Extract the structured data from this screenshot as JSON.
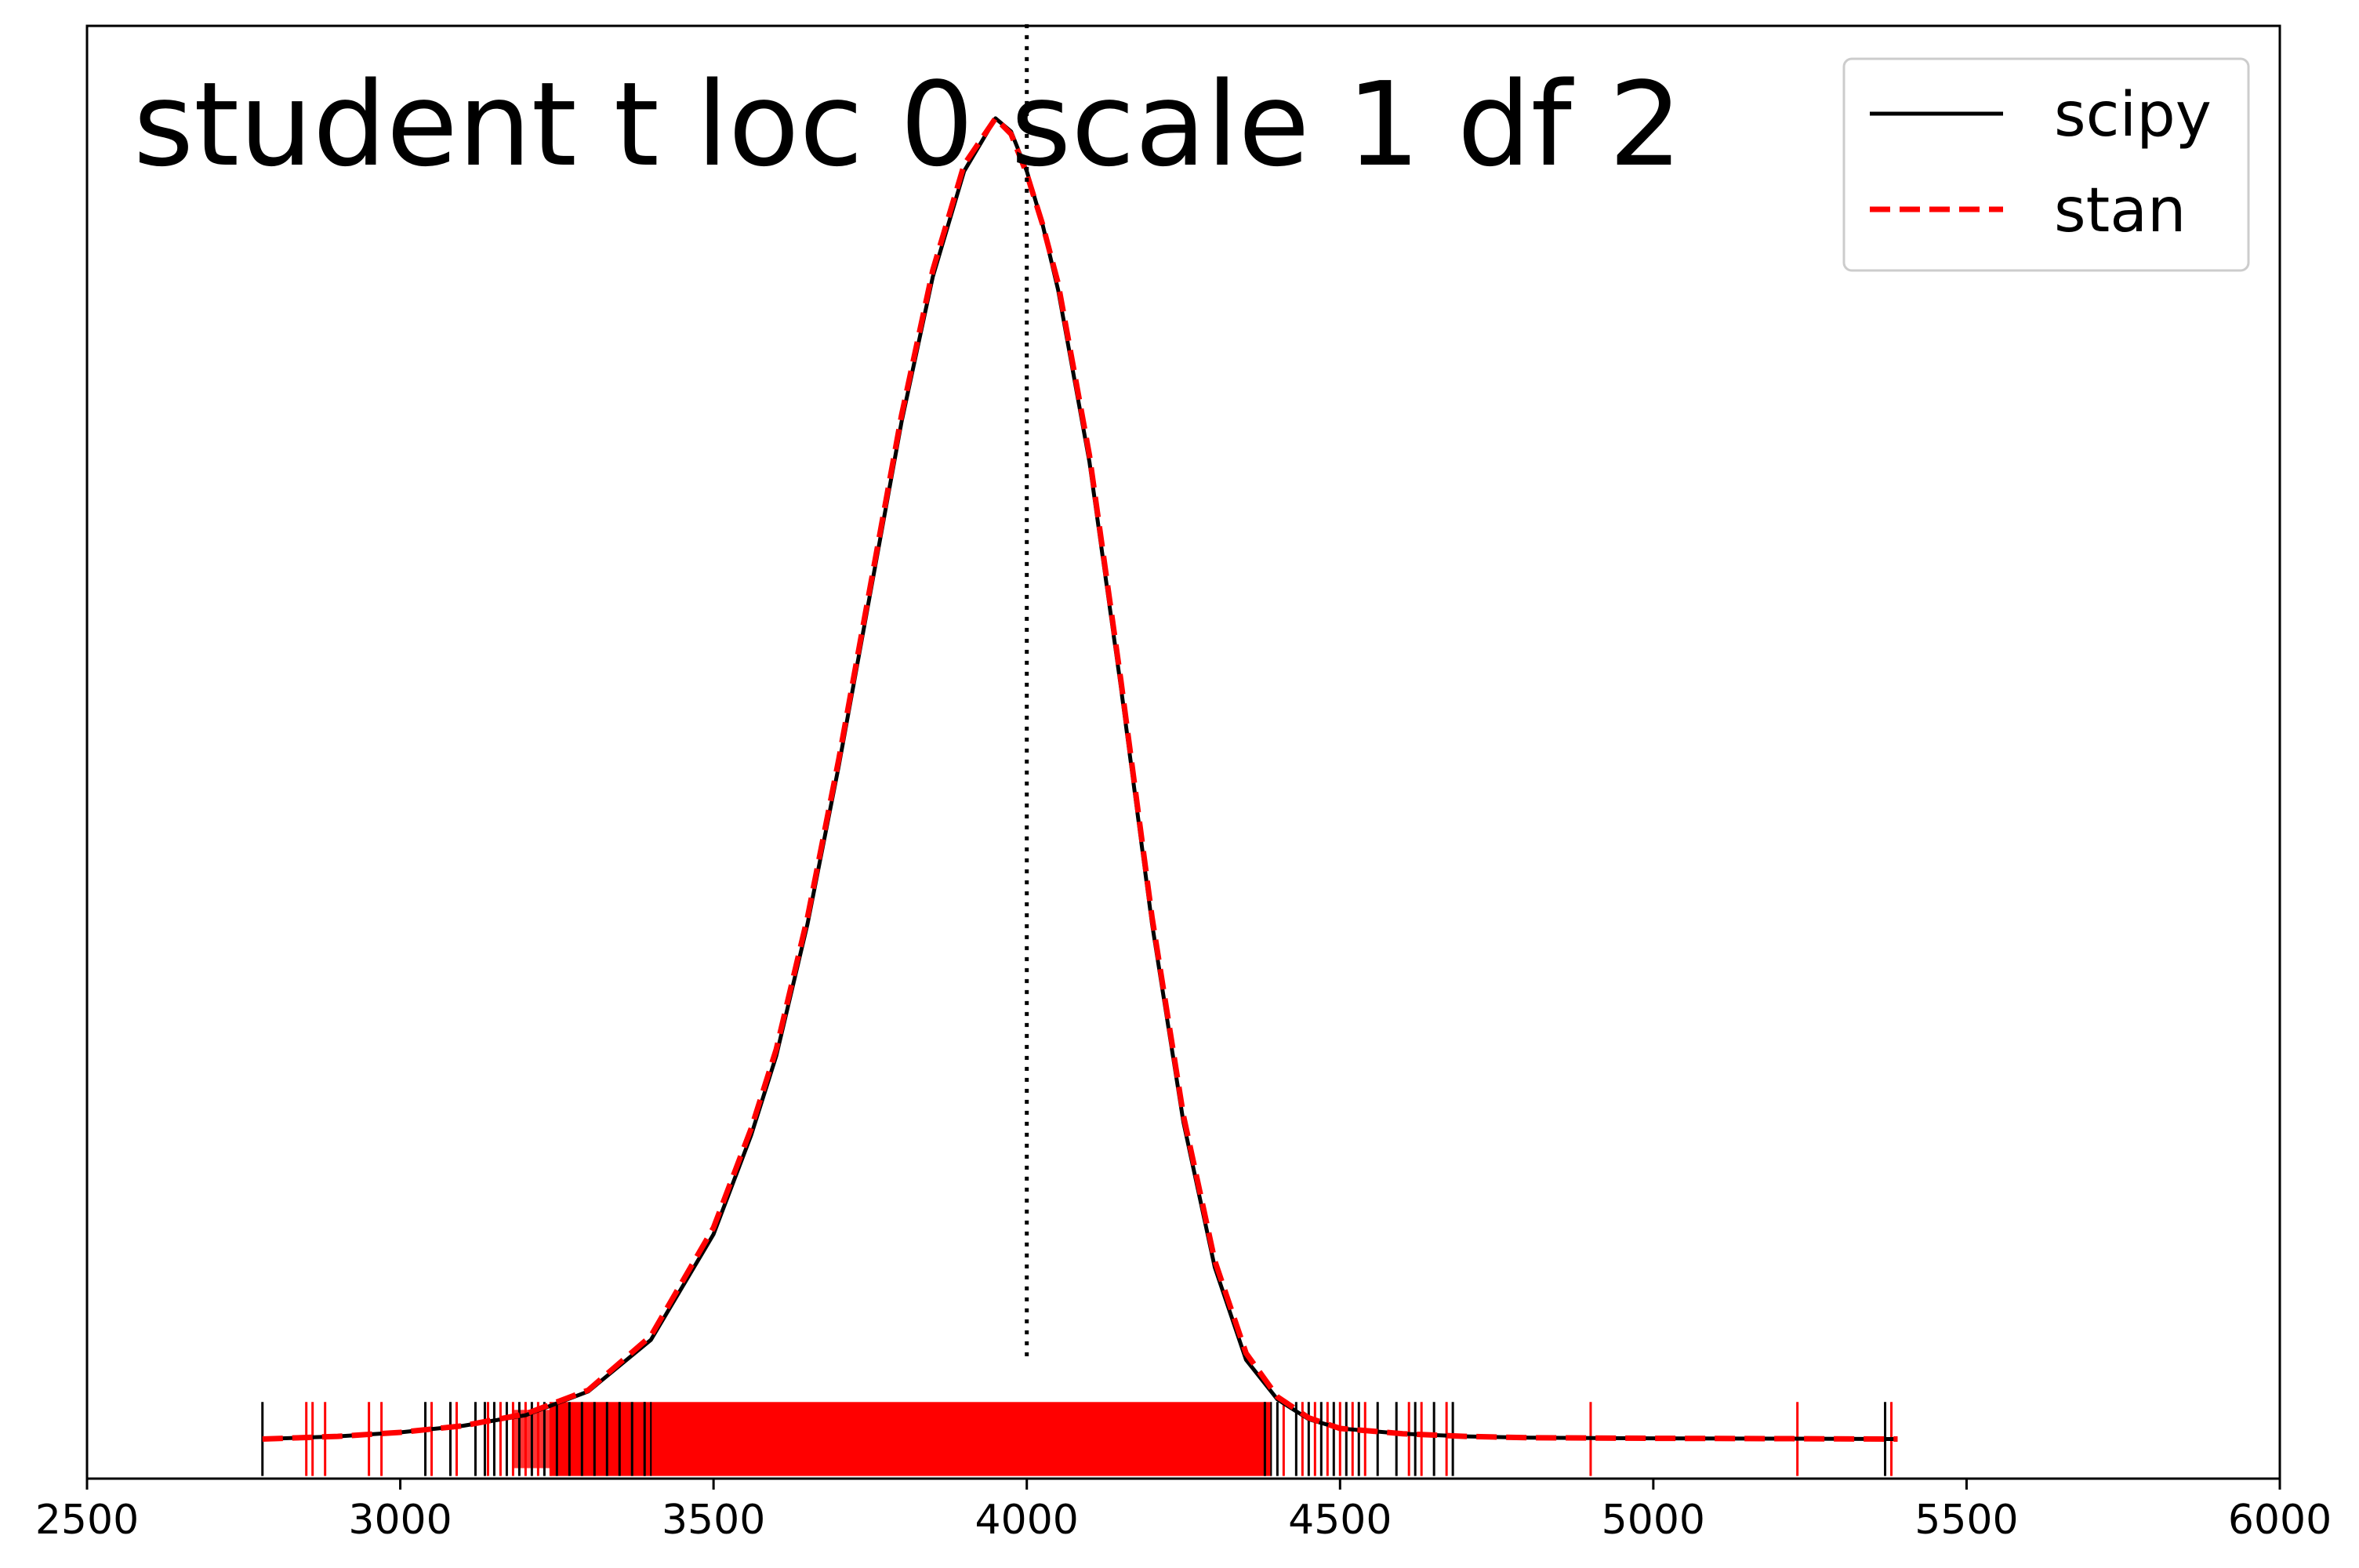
{
  "chart_data": {
    "type": "line",
    "title": "student t loc 0 scale 1 df 2",
    "xlabel": "",
    "ylabel": "",
    "xlim": [
      2500,
      6000
    ],
    "ylim": [
      -0.03,
      1.07
    ],
    "grid": false,
    "legend_position": "top-right",
    "x_ticks": [
      2500,
      3000,
      3500,
      4000,
      4500,
      5000,
      5500,
      6000
    ],
    "x_tick_labels": [
      "2500",
      "3000",
      "3500",
      "4000",
      "4500",
      "5000",
      "5500",
      "6000"
    ],
    "y_ticks": [],
    "reference_line": {
      "x": 4000,
      "y_range": [
        0,
        1.0
      ],
      "style": "dotted",
      "color": "#000000"
    },
    "series": [
      {
        "name": "scipy",
        "color": "#000000",
        "style": "solid",
        "x": [
          2780,
          2900,
          3000,
          3100,
          3200,
          3300,
          3400,
          3500,
          3560,
          3600,
          3650,
          3700,
          3750,
          3800,
          3850,
          3900,
          3950,
          3975,
          4000,
          4025,
          4050,
          4100,
          4150,
          4200,
          4250,
          4300,
          4350,
          4400,
          4450,
          4500,
          4600,
          4700,
          4800,
          5000,
          5200,
          5390
        ],
        "y": [
          0.0,
          0.002,
          0.005,
          0.01,
          0.018,
          0.036,
          0.075,
          0.155,
          0.23,
          0.29,
          0.39,
          0.51,
          0.64,
          0.77,
          0.88,
          0.96,
          1.0,
          0.99,
          0.96,
          0.92,
          0.87,
          0.74,
          0.57,
          0.39,
          0.24,
          0.13,
          0.06,
          0.03,
          0.015,
          0.008,
          0.004,
          0.002,
          0.001,
          0.0005,
          0.0003,
          0.0
        ]
      },
      {
        "name": "stan",
        "color": "#ff0000",
        "style": "dashed",
        "x": [
          2780,
          2900,
          3000,
          3100,
          3200,
          3300,
          3400,
          3500,
          3560,
          3600,
          3650,
          3700,
          3750,
          3800,
          3850,
          3900,
          3950,
          3975,
          4000,
          4025,
          4050,
          4100,
          4150,
          4200,
          4250,
          4300,
          4350,
          4400,
          4450,
          4500,
          4600,
          4700,
          4800,
          5000,
          5200,
          5390
        ],
        "y": [
          0.0,
          0.002,
          0.005,
          0.01,
          0.019,
          0.037,
          0.078,
          0.16,
          0.235,
          0.295,
          0.395,
          0.515,
          0.645,
          0.775,
          0.885,
          0.965,
          1.0,
          0.988,
          0.958,
          0.92,
          0.875,
          0.745,
          0.575,
          0.395,
          0.245,
          0.135,
          0.065,
          0.032,
          0.016,
          0.008,
          0.004,
          0.002,
          0.001,
          0.0005,
          0.0003,
          0.0
        ]
      }
    ],
    "rug": {
      "y": 0,
      "height": 0.028,
      "scipy_ticks": [
        2780,
        3040,
        3080,
        3120,
        3135,
        3150,
        3170,
        3190,
        3210,
        3230,
        3250,
        3270,
        3290,
        3310,
        3330,
        3350,
        3370,
        3390,
        4380,
        4400,
        4430,
        4450,
        4470,
        4490,
        4510,
        4530,
        4560,
        4590,
        4620,
        4650,
        4680,
        5370
      ],
      "stan_ticks": [
        2850,
        2860,
        2880,
        2950,
        2970,
        3050,
        3090,
        3140,
        3160,
        3180,
        3200,
        3220,
        3240,
        4410,
        4440,
        4460,
        4480,
        4500,
        4520,
        4540,
        4610,
        4630,
        4670,
        4900,
        5230,
        5380
      ],
      "stan_band": [
        3240,
        4390
      ],
      "stan_band_extra": [
        3180,
        3240
      ]
    }
  }
}
